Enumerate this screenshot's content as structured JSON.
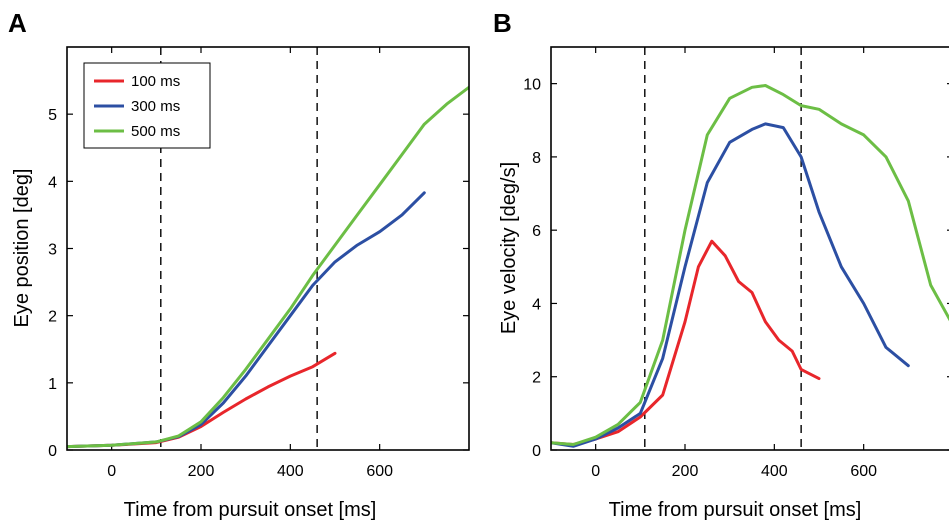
{
  "chart_data": [
    {
      "type": "line",
      "panel": "A",
      "xlabel": "Time from pursuit onset [ms]",
      "ylabel": "Eye position [deg]",
      "xlim": [
        -100,
        800
      ],
      "ylim": [
        0,
        6
      ],
      "xticks": [
        0,
        200,
        400,
        600
      ],
      "yticks": [
        0,
        1,
        2,
        3,
        4,
        5
      ],
      "vlines": [
        110,
        460
      ],
      "grid": false,
      "legend": "top-left",
      "series": [
        {
          "name": "100 ms",
          "color": "#e8262b",
          "x": [
            -100,
            0,
            100,
            150,
            200,
            250,
            300,
            350,
            400,
            450,
            500
          ],
          "y": [
            0.05,
            0.07,
            0.11,
            0.19,
            0.35,
            0.56,
            0.76,
            0.94,
            1.1,
            1.24,
            1.44
          ]
        },
        {
          "name": "300 ms",
          "color": "#2c4fa3",
          "x": [
            -100,
            0,
            100,
            150,
            200,
            250,
            300,
            350,
            400,
            450,
            500,
            550,
            600,
            650,
            700
          ],
          "y": [
            0.05,
            0.07,
            0.12,
            0.2,
            0.38,
            0.7,
            1.1,
            1.55,
            2.0,
            2.45,
            2.8,
            3.05,
            3.25,
            3.5,
            3.83
          ]
        },
        {
          "name": "500 ms",
          "color": "#6cbe45",
          "x": [
            -100,
            0,
            100,
            150,
            200,
            250,
            300,
            350,
            400,
            450,
            500,
            550,
            600,
            650,
            700,
            750,
            800
          ],
          "y": [
            0.05,
            0.07,
            0.12,
            0.21,
            0.42,
            0.78,
            1.2,
            1.65,
            2.1,
            2.6,
            3.05,
            3.5,
            3.95,
            4.4,
            4.85,
            5.15,
            5.4
          ]
        }
      ]
    },
    {
      "type": "line",
      "panel": "B",
      "xlabel": "Time from pursuit onset [ms]",
      "ylabel": "Eye velocity [deg/s]",
      "xlim": [
        -100,
        800
      ],
      "ylim": [
        0,
        11
      ],
      "xticks": [
        0,
        200,
        400,
        600
      ],
      "yticks": [
        0,
        2,
        4,
        6,
        8,
        10
      ],
      "vlines": [
        110,
        460
      ],
      "grid": false,
      "series": [
        {
          "name": "100 ms",
          "color": "#e8262b",
          "x": [
            -100,
            -50,
            0,
            50,
            100,
            150,
            200,
            230,
            260,
            290,
            320,
            350,
            380,
            410,
            440,
            460,
            500
          ],
          "y": [
            0.2,
            0.15,
            0.3,
            0.5,
            0.9,
            1.5,
            3.5,
            5.0,
            5.7,
            5.3,
            4.6,
            4.3,
            3.5,
            3.0,
            2.7,
            2.2,
            1.95
          ]
        },
        {
          "name": "300 ms",
          "color": "#2c4fa3",
          "x": [
            -100,
            -50,
            0,
            50,
            100,
            150,
            200,
            250,
            300,
            350,
            380,
            420,
            460,
            500,
            550,
            600,
            650,
            700
          ],
          "y": [
            0.2,
            0.1,
            0.3,
            0.6,
            1.0,
            2.5,
            5.0,
            7.3,
            8.4,
            8.75,
            8.9,
            8.8,
            8.0,
            6.5,
            5.0,
            4.0,
            2.8,
            2.3
          ]
        },
        {
          "name": "500 ms",
          "color": "#6cbe45",
          "x": [
            -100,
            -50,
            0,
            50,
            100,
            150,
            200,
            250,
            300,
            350,
            380,
            420,
            460,
            500,
            550,
            600,
            650,
            700,
            750,
            800
          ],
          "y": [
            0.2,
            0.15,
            0.35,
            0.7,
            1.3,
            3.0,
            6.0,
            8.6,
            9.6,
            9.9,
            9.95,
            9.7,
            9.4,
            9.3,
            8.9,
            8.6,
            8.0,
            6.8,
            4.5,
            3.4
          ]
        }
      ]
    }
  ]
}
